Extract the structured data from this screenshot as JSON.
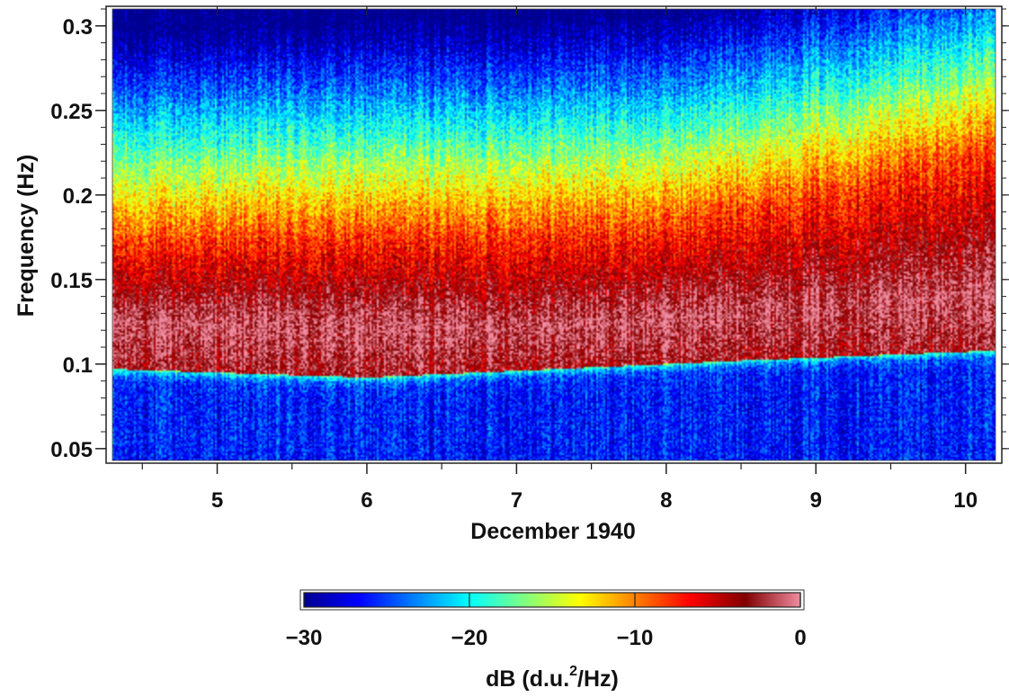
{
  "chart_data": {
    "type": "heatmap",
    "title": "",
    "xlabel": "December  1940",
    "ylabel": "Frequency  (Hz)",
    "xlim": [
      4.3,
      10.2
    ],
    "ylim": [
      0.043,
      0.31
    ],
    "x_ticks": [
      {
        "value": 5,
        "label": "5"
      },
      {
        "value": 6,
        "label": "6"
      },
      {
        "value": 7,
        "label": "7"
      },
      {
        "value": 8,
        "label": "8"
      },
      {
        "value": 9,
        "label": "9"
      },
      {
        "value": 10,
        "label": "10"
      }
    ],
    "y_ticks": [
      {
        "value": 0.05,
        "label": "0.05"
      },
      {
        "value": 0.1,
        "label": "0.1"
      },
      {
        "value": 0.15,
        "label": "0.15"
      },
      {
        "value": 0.2,
        "label": "0.2"
      },
      {
        "value": 0.25,
        "label": "0.25"
      },
      {
        "value": 0.3,
        "label": "0.3"
      }
    ],
    "colorbar": {
      "label_main": "dB  (d.u.",
      "label_sup": "2",
      "label_tail": "/Hz)",
      "range": [
        -30,
        0
      ],
      "ticks": [
        {
          "value": -30,
          "label": "−30"
        },
        {
          "value": -20,
          "label": "−20"
        },
        {
          "value": -10,
          "label": "−10"
        },
        {
          "value": 0,
          "label": "0"
        }
      ],
      "colormap": [
        "#00008f",
        "#0000ff",
        "#0080ff",
        "#00ffff",
        "#80ff80",
        "#ffff00",
        "#ff8000",
        "#ff0000",
        "#800000",
        "#f08ca0"
      ]
    },
    "microseism_band": {
      "lower_edge_hz": [
        {
          "day": 4.3,
          "hz": 0.097
        },
        {
          "day": 6.0,
          "hz": 0.092
        },
        {
          "day": 7.0,
          "hz": 0.096
        },
        {
          "day": 8.5,
          "hz": 0.102
        },
        {
          "day": 10.2,
          "hz": 0.108
        }
      ],
      "peak_hz": [
        {
          "day": 4.3,
          "hz": 0.125
        },
        {
          "day": 7.0,
          "hz": 0.122
        },
        {
          "day": 10.2,
          "hz": 0.14
        }
      ],
      "upper_edge_hz": [
        {
          "day": 4.3,
          "hz": 0.17
        },
        {
          "day": 8.0,
          "hz": 0.18
        },
        {
          "day": 10.2,
          "hz": 0.225
        }
      ]
    }
  }
}
